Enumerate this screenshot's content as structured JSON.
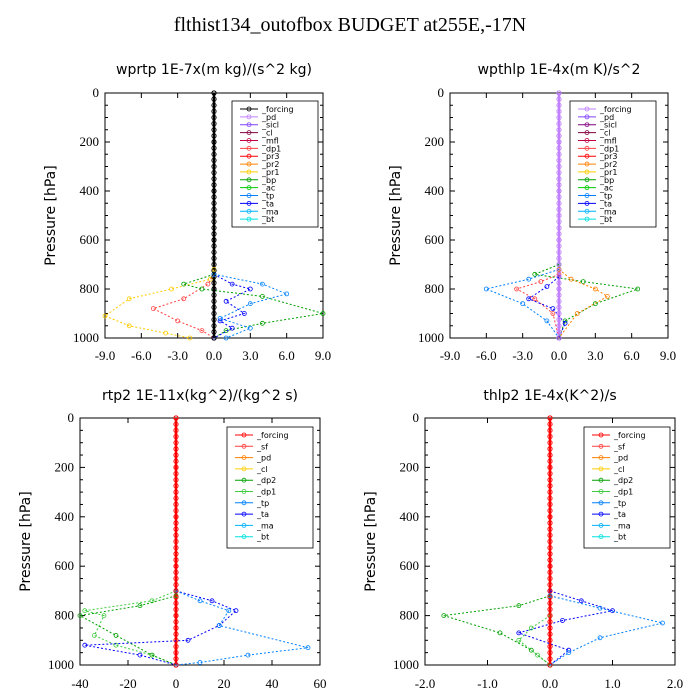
{
  "figure": {
    "title": "flthist134_outofbox  BUDGET at255E,-17N"
  },
  "chart_data": [
    {
      "type": "line",
      "title": "wprtp  1E-7x(m kg)/(s^2 kg)",
      "ylabel": "Pressure [hPa]",
      "xlim": [
        -9,
        9
      ],
      "ylim": [
        1000,
        0
      ],
      "xticks": [
        -9,
        -6,
        -3,
        0,
        3,
        6,
        9
      ],
      "xtick_labels": [
        "-9.0",
        "-6.0",
        "-3.0",
        "0.0",
        "3.0",
        "6.0",
        "9.0"
      ],
      "yticks": [
        0,
        200,
        400,
        600,
        800,
        1000
      ],
      "legend": [
        "_forcing",
        "_pd",
        "_sicl",
        "_cl",
        "_mfl",
        "_dp1",
        "_pr3",
        "_pr2",
        "_pr1",
        "_bp",
        "_ac",
        "_tp",
        "_ta",
        "_ma",
        "_bt"
      ],
      "legend_colors": [
        "#000000",
        "#c080ff",
        "#8040ff",
        "#800040",
        "#c00040",
        "#ff4040",
        "#ff0000",
        "#ff8000",
        "#ffcc00",
        "#00a000",
        "#00cc00",
        "#0080ff",
        "#0000ff",
        "#00b0ff",
        "#00e0e0"
      ],
      "series": [
        {
          "name": "_forcing",
          "x": [
            0,
            0,
            0,
            0,
            0,
            0
          ],
          "y": [
            0,
            200,
            400,
            600,
            800,
            1000
          ]
        },
        {
          "name": "_pr1",
          "x": [
            0,
            -0.3,
            -3.5,
            -7,
            -9,
            -7,
            -4,
            -2
          ],
          "y": [
            720,
            760,
            800,
            840,
            910,
            950,
            980,
            1000
          ]
        },
        {
          "name": "_dp1",
          "x": [
            0,
            -0.5,
            -2.5,
            -5,
            -3,
            -1,
            0
          ],
          "y": [
            740,
            780,
            840,
            880,
            930,
            970,
            1000
          ]
        },
        {
          "name": "_bp",
          "x": [
            0,
            -2.5,
            -1,
            4,
            9,
            4,
            1,
            0
          ],
          "y": [
            740,
            780,
            800,
            830,
            900,
            940,
            970,
            1000
          ]
        },
        {
          "name": "_ta",
          "x": [
            0,
            1.5,
            3,
            1,
            2.5,
            0.5,
            1.5,
            0
          ],
          "y": [
            740,
            780,
            800,
            850,
            900,
            930,
            960,
            1000
          ]
        },
        {
          "name": "_tp",
          "x": [
            0,
            4,
            6,
            3,
            0.5,
            3,
            1
          ],
          "y": [
            740,
            780,
            820,
            860,
            920,
            960,
            1000
          ]
        }
      ]
    },
    {
      "type": "line",
      "title": "wpthlp  1E-4x(m K)/s^2",
      "ylabel": "Pressure [hPa]",
      "xlim": [
        -9,
        9
      ],
      "ylim": [
        1000,
        0
      ],
      "xticks": [
        -9,
        -6,
        -3,
        0,
        3,
        6,
        9
      ],
      "xtick_labels": [
        "-9.0",
        "-6.0",
        "-3.0",
        "0.0",
        "3.0",
        "6.0",
        "9.0"
      ],
      "yticks": [
        0,
        200,
        400,
        600,
        800,
        1000
      ],
      "legend": [
        "_forcing",
        "_pd",
        "_sicl",
        "_cl",
        "_mfl",
        "_dp1",
        "_pr3",
        "_pr2",
        "_pr1",
        "_bp",
        "_ac",
        "_tp",
        "_ta",
        "_ma",
        "_bt"
      ],
      "legend_colors": [
        "#c080ff",
        "#8040ff",
        "#800080",
        "#800040",
        "#c00040",
        "#ff4040",
        "#ff0000",
        "#ff8000",
        "#ffcc00",
        "#00a000",
        "#00cc00",
        "#0080ff",
        "#0000ff",
        "#00b0ff",
        "#00e0e0"
      ],
      "series": [
        {
          "name": "_forcing",
          "x": [
            0,
            0,
            0,
            0,
            0,
            0
          ],
          "y": [
            0,
            200,
            400,
            600,
            800,
            1000
          ]
        },
        {
          "name": "_bp",
          "x": [
            0,
            -2,
            2,
            6.5,
            3,
            0.5,
            0
          ],
          "y": [
            700,
            740,
            770,
            800,
            860,
            930,
            1000
          ]
        },
        {
          "name": "_tp",
          "x": [
            0,
            -2.5,
            -6,
            -3,
            -1,
            0
          ],
          "y": [
            720,
            760,
            800,
            860,
            930,
            1000
          ]
        },
        {
          "name": "_pr2",
          "x": [
            0,
            1,
            3,
            4,
            1.5,
            0
          ],
          "y": [
            720,
            760,
            800,
            830,
            900,
            1000
          ]
        },
        {
          "name": "_dp1",
          "x": [
            0,
            -1.5,
            -3.5,
            -2,
            -0.5,
            0
          ],
          "y": [
            740,
            770,
            800,
            840,
            900,
            1000
          ]
        },
        {
          "name": "_ta",
          "x": [
            0,
            -1,
            -2.5,
            -0.5,
            0.5,
            0
          ],
          "y": [
            750,
            790,
            840,
            880,
            940,
            1000
          ]
        }
      ]
    },
    {
      "type": "line",
      "title": "rtp2  1E-11x(kg^2)/(kg^2 s)",
      "ylabel": "Pressure [hPa]",
      "xlim": [
        -40,
        60
      ],
      "ylim": [
        1000,
        0
      ],
      "xticks": [
        -40,
        -20,
        0,
        20,
        40,
        60
      ],
      "xtick_labels": [
        "-40",
        "-20",
        "0",
        "20",
        "40",
        "60"
      ],
      "yticks": [
        0,
        200,
        400,
        600,
        800,
        1000
      ],
      "legend": [
        "_forcing",
        "_sf",
        "_pd",
        "_cl",
        "_dp2",
        "_dp1",
        "_tp",
        "_ta",
        "_ma",
        "_bt"
      ],
      "legend_colors": [
        "#ff0000",
        "#ff4040",
        "#ff8000",
        "#ffcc00",
        "#00a000",
        "#40cc40",
        "#0080ff",
        "#0000ff",
        "#00b0ff",
        "#00e0e0"
      ],
      "series": [
        {
          "name": "_forcing",
          "x": [
            0,
            0,
            0,
            0,
            0,
            0
          ],
          "y": [
            0,
            200,
            400,
            600,
            800,
            1000
          ]
        },
        {
          "name": "_dp1",
          "x": [
            0,
            -10,
            -38,
            -30,
            -34,
            -25,
            -10,
            0
          ],
          "y": [
            700,
            740,
            780,
            800,
            880,
            920,
            960,
            1000
          ]
        },
        {
          "name": "_dp2",
          "x": [
            0,
            -15,
            -40,
            -25,
            -10,
            0
          ],
          "y": [
            720,
            760,
            800,
            880,
            960,
            1000
          ]
        },
        {
          "name": "_ta",
          "x": [
            0,
            15,
            25,
            18,
            5,
            -38,
            -15,
            0
          ],
          "y": [
            700,
            740,
            780,
            840,
            900,
            920,
            960,
            1000
          ]
        },
        {
          "name": "_tp",
          "x": [
            0,
            10,
            22,
            18,
            55,
            30,
            10,
            0
          ],
          "y": [
            700,
            740,
            780,
            840,
            930,
            960,
            990,
            1000
          ]
        }
      ]
    },
    {
      "type": "line",
      "title": "thlp2  1E-4x(K^2)/s",
      "ylabel": "Pressure [hPa]",
      "xlim": [
        -2,
        2
      ],
      "ylim": [
        1000,
        0
      ],
      "xticks": [
        -2,
        -1,
        0,
        1,
        2
      ],
      "xtick_labels": [
        "-2.0",
        "-1.0",
        "0.0",
        "1.0",
        "2.0"
      ],
      "yticks": [
        0,
        200,
        400,
        600,
        800,
        1000
      ],
      "legend": [
        "_forcing",
        "_sf",
        "_pd",
        "_cl",
        "_dp2",
        "_dp1",
        "_tp",
        "_ta",
        "_ma",
        "_bt"
      ],
      "legend_colors": [
        "#ff0000",
        "#ff4040",
        "#ff8000",
        "#ffcc00",
        "#00a000",
        "#40cc40",
        "#0080ff",
        "#0000ff",
        "#00b0ff",
        "#00e0e0"
      ],
      "series": [
        {
          "name": "_forcing",
          "x": [
            0,
            0,
            0,
            0,
            0,
            0
          ],
          "y": [
            0,
            200,
            400,
            600,
            800,
            1000
          ]
        },
        {
          "name": "_dp2",
          "x": [
            0,
            -0.5,
            -1.7,
            -0.8,
            -0.3,
            0
          ],
          "y": [
            720,
            760,
            800,
            870,
            940,
            1000
          ]
        },
        {
          "name": "_ta",
          "x": [
            0,
            0.5,
            1,
            0.2,
            -0.5,
            0.3,
            0
          ],
          "y": [
            700,
            740,
            780,
            820,
            870,
            940,
            1000
          ]
        },
        {
          "name": "_tp",
          "x": [
            0,
            0.8,
            1.8,
            0.8,
            0.3,
            0
          ],
          "y": [
            720,
            770,
            830,
            890,
            950,
            1000
          ]
        },
        {
          "name": "_dp1",
          "x": [
            0,
            -0.3,
            -0.5,
            -0.2,
            0
          ],
          "y": [
            800,
            850,
            900,
            960,
            1000
          ]
        }
      ]
    }
  ]
}
